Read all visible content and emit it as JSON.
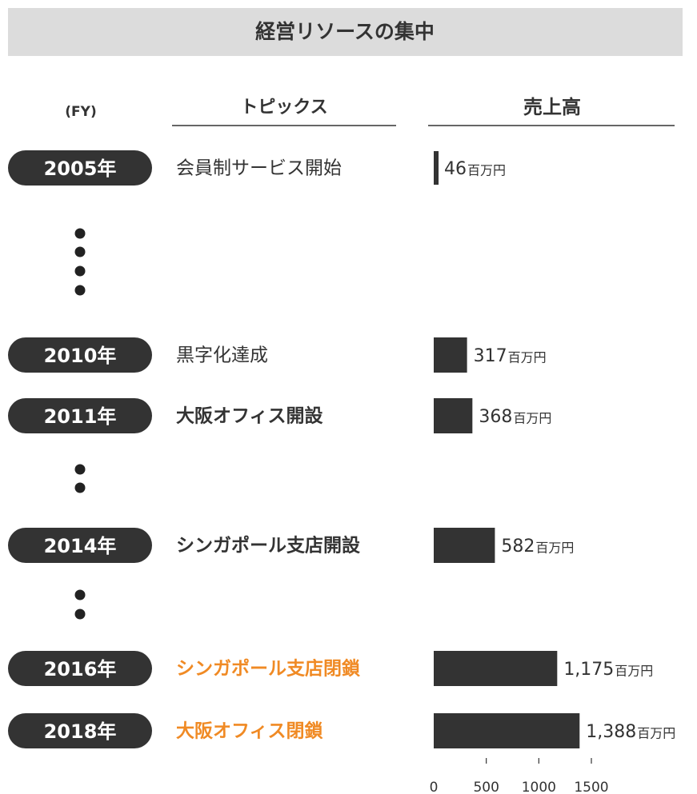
{
  "chart_data": {
    "type": "bar",
    "title": "経営リソースの集中",
    "fy_label": "(FY)",
    "topics_header": "トピックス",
    "sales_header": "売上高",
    "categories": [
      "2005年",
      "2010年",
      "2011年",
      "2014年",
      "2016年",
      "2018年"
    ],
    "topics": [
      "会員制サービス開始",
      "黒字化達成",
      "大阪オフィス開設",
      "シンガポール支店開設",
      "シンガポール支店閉鎖",
      "大阪オフィス閉鎖"
    ],
    "topic_colors": [
      "#333333",
      "#333333",
      "#333333",
      "#333333",
      "#f08a24",
      "#f08a24"
    ],
    "topic_bold": [
      false,
      false,
      true,
      true,
      true,
      true
    ],
    "values": [
      46,
      317,
      368,
      582,
      1175,
      1388
    ],
    "value_labels": [
      "46",
      "317",
      "368",
      "582",
      "1,175",
      "1,388"
    ],
    "unit": "百万円",
    "color": "#333333",
    "xlim": [
      0,
      1500
    ],
    "xticks": [
      0,
      500,
      1000,
      1500
    ]
  }
}
